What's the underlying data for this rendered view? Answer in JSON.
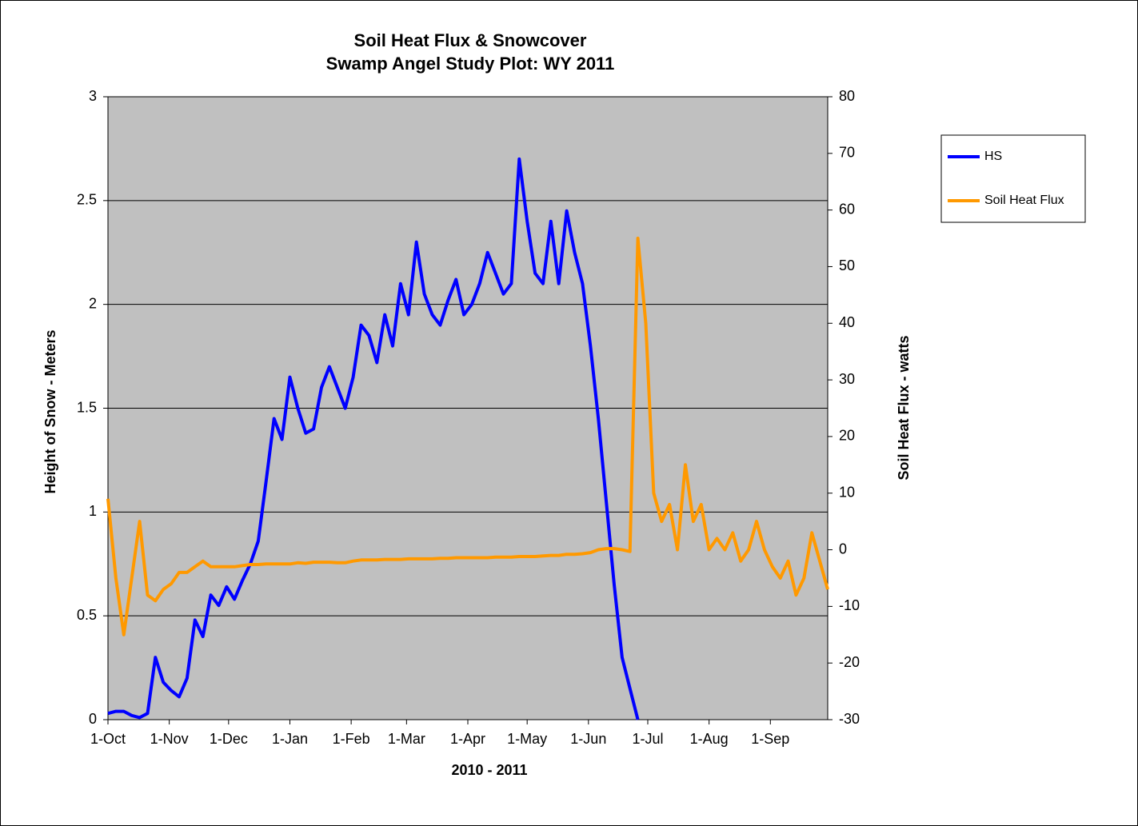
{
  "chart_data": {
    "type": "line",
    "title": "Soil Heat Flux & Snowcover",
    "subtitle": "Swamp Angel Study Plot: WY 2011",
    "x_label": "2010 - 2011",
    "y_label": "Height of Snow - Meters",
    "y2_label": "Soil Heat Flux - watts",
    "x": [
      0,
      4,
      8,
      12,
      16,
      20,
      24,
      28,
      32,
      36,
      40,
      44,
      48,
      52,
      56,
      60,
      64,
      68,
      72,
      76,
      80,
      84,
      88,
      92,
      96,
      100,
      104,
      108,
      112,
      116,
      120,
      124,
      128,
      132,
      136,
      140,
      144,
      148,
      152,
      156,
      160,
      164,
      168,
      172,
      176,
      180,
      184,
      188,
      192,
      196,
      200,
      204,
      208,
      212,
      216,
      220,
      224,
      228,
      232,
      236,
      240,
      244,
      248,
      252,
      256,
      260,
      264,
      268,
      272,
      276,
      280,
      284,
      288,
      292,
      296,
      300,
      304,
      308,
      312,
      316,
      320,
      324,
      328,
      332,
      336,
      340,
      344,
      348,
      352,
      356,
      360,
      364
    ],
    "xlim": [
      0,
      364
    ],
    "xticks": [
      {
        "value": 0,
        "label": "1-Oct"
      },
      {
        "value": 31,
        "label": "1-Nov"
      },
      {
        "value": 61,
        "label": "1-Dec"
      },
      {
        "value": 92,
        "label": "1-Jan"
      },
      {
        "value": 123,
        "label": "1-Feb"
      },
      {
        "value": 151,
        "label": "1-Mar"
      },
      {
        "value": 182,
        "label": "1-Apr"
      },
      {
        "value": 212,
        "label": "1-May"
      },
      {
        "value": 243,
        "label": "1-Jun"
      },
      {
        "value": 273,
        "label": "1-Jul"
      },
      {
        "value": 304,
        "label": "1-Aug"
      },
      {
        "value": 335,
        "label": "1-Sep"
      }
    ],
    "ylim": [
      0,
      3
    ],
    "yticks": [
      0,
      0.5,
      1,
      1.5,
      2,
      2.5,
      3
    ],
    "y2lim": [
      -30,
      80
    ],
    "y2ticks": [
      -30,
      -20,
      -10,
      0,
      10,
      20,
      30,
      40,
      50,
      60,
      70,
      80
    ],
    "grid": true,
    "legend": "right",
    "series": [
      {
        "name": "HS",
        "color": "#0000ff",
        "values": [
          0.03,
          0.04,
          0.04,
          0.02,
          0.01,
          0.03,
          0.3,
          0.18,
          0.14,
          0.11,
          0.2,
          0.48,
          0.4,
          0.6,
          0.55,
          0.64,
          0.58,
          0.67,
          0.75,
          0.86,
          1.15,
          1.45,
          1.35,
          1.65,
          1.5,
          1.38,
          1.4,
          1.6,
          1.7,
          1.6,
          1.5,
          1.65,
          1.9,
          1.85,
          1.72,
          1.95,
          1.8,
          2.1,
          1.95,
          2.3,
          2.05,
          1.95,
          1.9,
          2.02,
          2.12,
          1.95,
          2.0,
          2.1,
          2.25,
          2.15,
          2.05,
          2.1,
          2.7,
          2.4,
          2.15,
          2.1,
          2.4,
          2.1,
          2.45,
          2.25,
          2.1,
          1.8,
          1.45,
          1.05,
          0.65,
          0.3,
          0.15,
          0,
          null,
          null,
          null,
          null,
          null,
          null,
          null,
          null,
          null,
          null,
          null,
          null,
          null,
          null,
          null,
          null,
          null,
          null,
          null,
          null,
          null,
          null,
          null,
          null
        ]
      },
      {
        "name": "Soil Heat Flux",
        "color": "#ff9900",
        "axis": "y2",
        "values": [
          9,
          -5,
          -15,
          -5,
          5,
          -8,
          -9,
          -7,
          -6,
          -4,
          -4,
          -3,
          -2,
          -3,
          -3,
          -3,
          -3,
          -2.8,
          -2.6,
          -2.6,
          -2.5,
          -2.5,
          -2.5,
          -2.5,
          -2.3,
          -2.4,
          -2.2,
          -2.2,
          -2.2,
          -2.3,
          -2.3,
          -2,
          -1.8,
          -1.8,
          -1.8,
          -1.7,
          -1.7,
          -1.7,
          -1.6,
          -1.6,
          -1.6,
          -1.6,
          -1.5,
          -1.5,
          -1.4,
          -1.4,
          -1.4,
          -1.4,
          -1.4,
          -1.3,
          -1.3,
          -1.3,
          -1.2,
          -1.2,
          -1.2,
          -1.1,
          -1,
          -1,
          -0.8,
          -0.8,
          -0.7,
          -0.5,
          0,
          0.2,
          0.2,
          0,
          -0.3,
          55,
          40,
          10,
          5,
          8,
          0,
          15,
          5,
          8,
          0,
          2,
          0,
          3,
          -2,
          0,
          5,
          0,
          -3,
          -5,
          -2,
          -8,
          -5,
          3,
          -2,
          -7
        ]
      }
    ]
  }
}
